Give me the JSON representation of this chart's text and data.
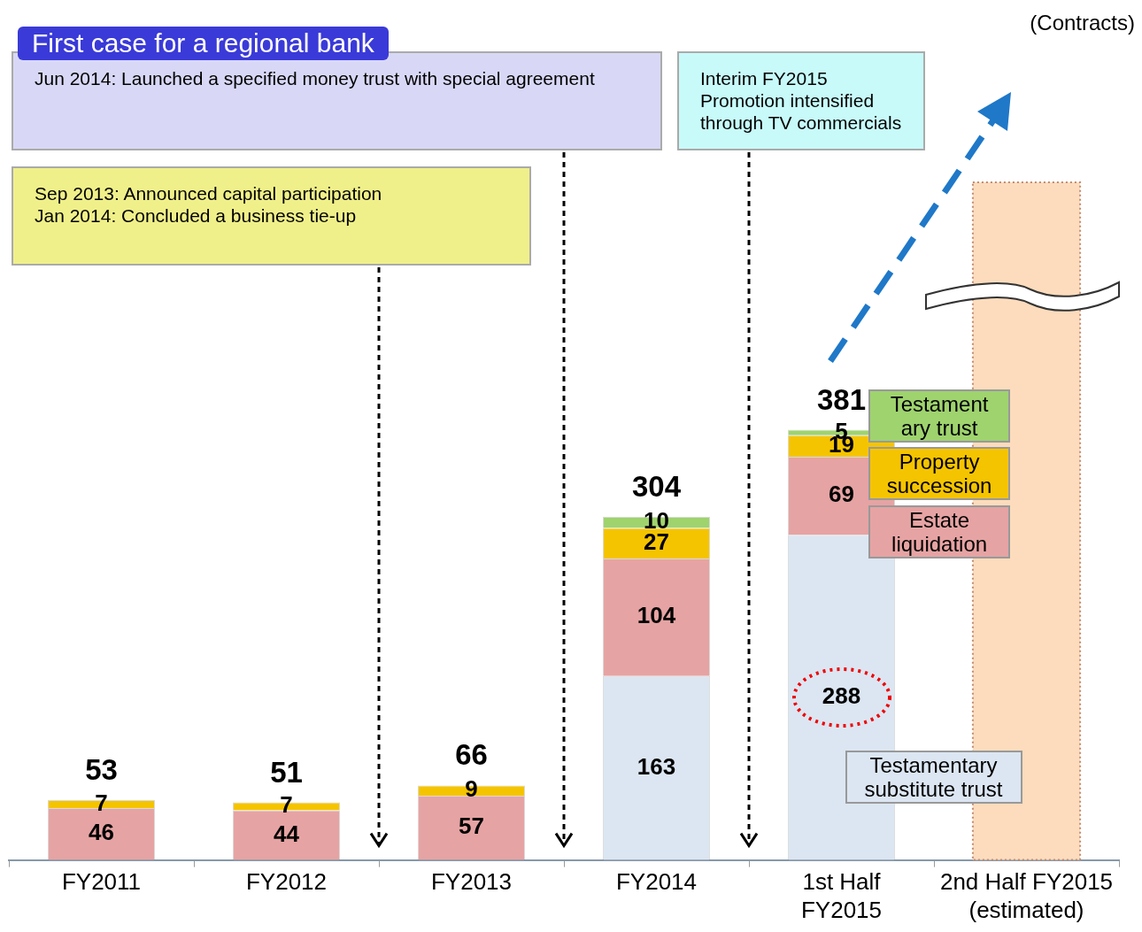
{
  "chart_data": {
    "type": "bar",
    "title": "First case for a regional bank",
    "bands": [
      {
        "axis": "x",
        "from": "2nd Half FY2015 (estimated)",
        "to": "2nd Half FY2015 (estimated)",
        "color": "#fcdcbc"
      }
    ],
    "categories": [
      "FY2011",
      "FY2012",
      "FY2013",
      "FY2014",
      "1st Half FY2015",
      "2nd Half FY2015 (estimated)"
    ],
    "stacked": true,
    "data_labels": true,
    "tick_labels": "x",
    "series": [
      {
        "name": "Testamentary substitute trust",
        "color": "#dce6f2",
        "values": [
          null,
          null,
          null,
          163,
          288,
          null
        ]
      },
      {
        "name": "Estate liquidation",
        "color": "#e6a3a3",
        "values": [
          46,
          44,
          57,
          104,
          69,
          null
        ]
      },
      {
        "name": "Property succession",
        "color": "#f5c400",
        "values": [
          7,
          7,
          9,
          27,
          19,
          null
        ]
      },
      {
        "name": "Testament ary trust",
        "color": "#9fd36e",
        "values": [
          null,
          null,
          null,
          10,
          5,
          null
        ]
      }
    ],
    "totals": [
      "53",
      "51",
      "66",
      "304",
      "381",
      null
    ],
    "annotations": [
      "Jun 2014: Launched a specified money trust with special agreement",
      "Sep 2013: Announced capital participation",
      "Jan 2014: Concluded a business tie-up",
      "Interim FY2015 Promotion intensified through TV commercials",
      "(Contracts)"
    ]
  }
}
